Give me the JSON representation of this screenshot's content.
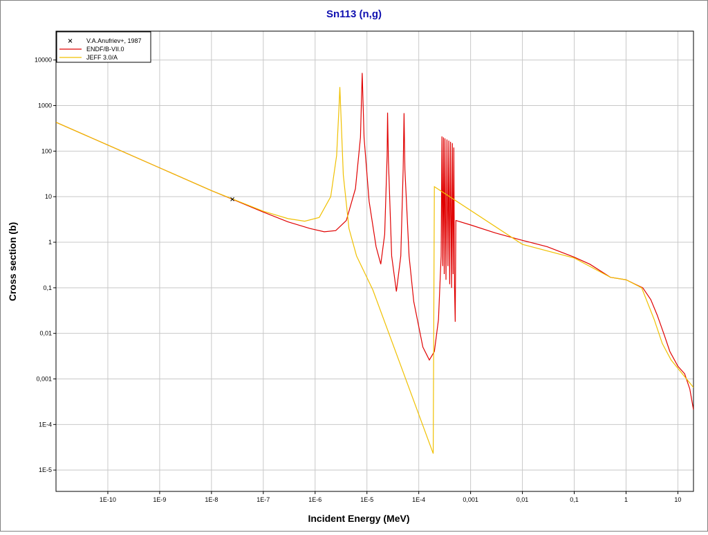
{
  "chart_data": {
    "type": "line",
    "title": "Sn113 (n,g)",
    "x_label": "Incident Energy (MeV)",
    "y_label": "Cross section (b)",
    "x_scale": "log",
    "y_scale": "log",
    "grid": true,
    "legend": "top-left",
    "xlim": [
      1e-11,
      20
    ],
    "ylim": [
      3.4e-06,
      43000
    ],
    "xticks": [
      {
        "value": 1e-10,
        "label": "1E-10"
      },
      {
        "value": 1e-09,
        "label": "1E-9"
      },
      {
        "value": 1e-08,
        "label": "1E-8"
      },
      {
        "value": 1e-07,
        "label": "1E-7"
      },
      {
        "value": 1e-06,
        "label": "1E-6"
      },
      {
        "value": 1e-05,
        "label": "1E-5"
      },
      {
        "value": 0.0001,
        "label": "1E-4"
      },
      {
        "value": 0.001,
        "label": "0,001"
      },
      {
        "value": 0.01,
        "label": "0,01"
      },
      {
        "value": 0.1,
        "label": "0,1"
      },
      1,
      10
    ],
    "yticks": [
      {
        "value": 1e-05,
        "label": "1E-5"
      },
      {
        "value": 0.0001,
        "label": "1E-4"
      },
      {
        "value": 0.001,
        "label": "0,001"
      },
      {
        "value": 0.01,
        "label": "0,01"
      },
      {
        "value": 0.1,
        "label": "0,1"
      },
      1,
      10,
      100,
      1000,
      10000
    ],
    "series": [
      {
        "name": "V.A.Anufriev+, 1987",
        "type": "scatter",
        "color": "#000000",
        "x": [
          2.53e-08
        ],
        "values": [
          8.8
        ]
      },
      {
        "name": "ENDF/B-VII.0",
        "color": "#e00000",
        "x": [
          1e-11,
          1e-10,
          1e-09,
          1e-08,
          2.53e-08,
          1e-07,
          3e-07,
          8e-07,
          1.5e-06,
          2.5e-06,
          4e-06,
          6e-06,
          7.5e-06,
          8.1e-06,
          8.8e-06,
          1.1e-05,
          1.5e-05,
          1.85e-05,
          2.2e-05,
          2.45e-05,
          2.5e-05,
          2.6e-05,
          3e-05,
          3.7e-05,
          4.5e-05,
          5e-05,
          5.2e-05,
          5.4e-05,
          6.5e-05,
          8e-05,
          0.00012,
          0.00016,
          0.0002,
          0.00024,
          0.00027,
          0.00028,
          0.00029,
          0.0003,
          0.00031,
          0.00032,
          0.000335,
          0.00035,
          0.000365,
          0.00038,
          0.000395,
          0.00041,
          0.00043,
          0.000445,
          0.00046,
          0.000475,
          0.00049,
          0.000505,
          0.00052,
          0.001,
          0.003,
          0.01,
          0.03,
          0.1,
          0.2,
          0.5,
          1,
          1.5,
          2.1,
          3,
          4,
          5.5,
          7,
          10,
          13.5,
          17,
          20
        ],
        "values": [
          430,
          136,
          43,
          13.6,
          8.8,
          4.6,
          2.8,
          2.0,
          1.7,
          1.8,
          3,
          15,
          200,
          5200,
          200,
          8,
          0.8,
          0.33,
          1.5,
          80,
          700,
          60,
          0.5,
          0.083,
          0.5,
          40,
          680,
          40,
          0.5,
          0.05,
          0.005,
          0.0026,
          0.004,
          0.02,
          0.5,
          210,
          0.3,
          200,
          0.2,
          190,
          0.15,
          180,
          0.3,
          170,
          0.12,
          160,
          0.1,
          150,
          0.2,
          120,
          0.1,
          0.018,
          3.0,
          2.4,
          1.6,
          1.1,
          0.8,
          0.47,
          0.33,
          0.17,
          0.15,
          0.12,
          0.1,
          0.055,
          0.025,
          0.009,
          0.004,
          0.0019,
          0.0013,
          0.0006,
          0.00021
        ]
      },
      {
        "name": "JEFF 3.0/A",
        "color": "#f0c000",
        "x": [
          1e-11,
          1e-10,
          1e-09,
          1e-08,
          1e-07,
          3e-07,
          6.3e-07,
          1.2e-06,
          2e-06,
          2.6e-06,
          2.9e-06,
          3e-06,
          3.1e-06,
          3.5e-06,
          4.5e-06,
          6.3e-06,
          1.3e-05,
          0.00019,
          0.0002,
          0.01,
          0.1,
          0.5,
          1,
          2,
          3.5,
          5,
          7.4,
          20
        ],
        "values": [
          430,
          136,
          43,
          13.6,
          4.8,
          3.3,
          2.9,
          3.5,
          10,
          80,
          1000,
          2550,
          1000,
          30,
          2,
          0.5,
          0.09,
          2.3e-05,
          16.6,
          0.9,
          0.45,
          0.17,
          0.15,
          0.1,
          0.02,
          0.006,
          0.0026,
          0.00065
        ]
      }
    ]
  }
}
